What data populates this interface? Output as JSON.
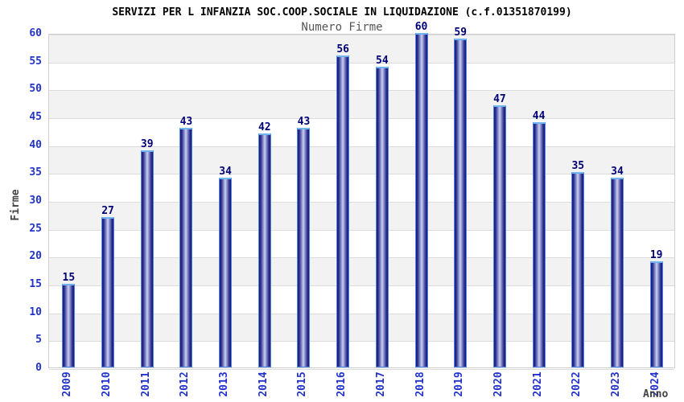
{
  "chart_data": {
    "type": "bar",
    "title": "SERVIZI PER L INFANZIA SOC.COOP.SOCIALE IN LIQUIDAZIONE (c.f.01351870199)",
    "subtitle": "Numero Firme",
    "xlabel": "Anno",
    "ylabel": "Firme",
    "categories": [
      "2009",
      "2010",
      "2011",
      "2012",
      "2013",
      "2014",
      "2015",
      "2016",
      "2017",
      "2018",
      "2019",
      "2020",
      "2021",
      "2022",
      "2023",
      "2024"
    ],
    "values": [
      15,
      27,
      39,
      43,
      34,
      42,
      43,
      56,
      54,
      60,
      59,
      47,
      44,
      35,
      34,
      19
    ],
    "ylim": [
      0,
      60
    ],
    "ytick_step": 5,
    "grid": true,
    "legend": "none",
    "colors": {
      "title": "#000000",
      "subtitle": "#555555",
      "tick_label": "#2233cc",
      "value_label": "#000077",
      "axis_label": "#444444",
      "stripe": "#f2f2f2",
      "gridline": "#dcdcdc",
      "plot_border": "#cfcfcf",
      "bar_edge_dark": "#1a1a70",
      "bar_mid": "#9aa2d6",
      "bar_center_light": "#cdd2ee",
      "bar_outline": "#4d85e8",
      "bar_top_cap": "#6fb4f2"
    }
  }
}
